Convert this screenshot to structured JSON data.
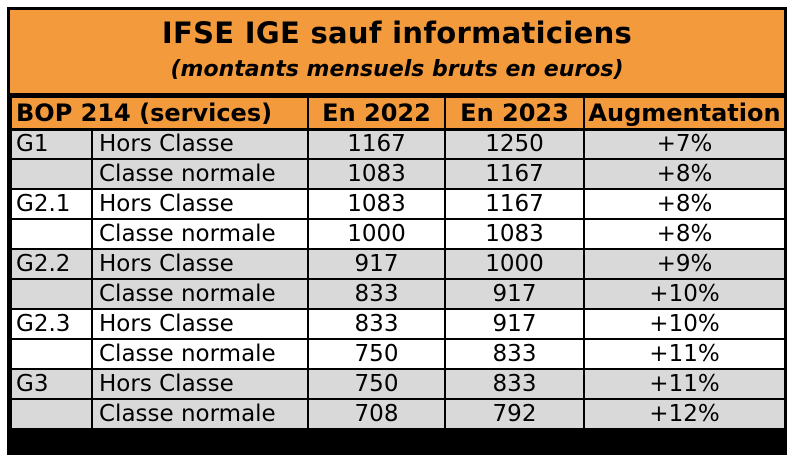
{
  "title": "IFSE IGE sauf informaticiens",
  "subtitle": "(montants mensuels bruts en euros)",
  "headers": {
    "services": "BOP 214 (services)",
    "y2022": "En 2022",
    "y2023": "En 2023",
    "augmentation": "Augmentation"
  },
  "rows": [
    {
      "group": "G1",
      "label": "Hors Classe",
      "y2022": "1167",
      "y2023": "1250",
      "increase": "+7%"
    },
    {
      "group": "",
      "label": "Classe normale",
      "y2022": "1083",
      "y2023": "1167",
      "increase": "+8%"
    },
    {
      "group": "G2.1",
      "label": "Hors Classe",
      "y2022": "1083",
      "y2023": "1167",
      "increase": "+8%"
    },
    {
      "group": "",
      "label": "Classe normale",
      "y2022": "1000",
      "y2023": "1083",
      "increase": "+8%"
    },
    {
      "group": "G2.2",
      "label": "Hors Classe",
      "y2022": "917",
      "y2023": "1000",
      "increase": "+9%"
    },
    {
      "group": "",
      "label": "Classe normale",
      "y2022": "833",
      "y2023": "917",
      "increase": "+10%"
    },
    {
      "group": "G2.3",
      "label": "Hors Classe",
      "y2022": "833",
      "y2023": "917",
      "increase": "+10%"
    },
    {
      "group": "",
      "label": "Classe normale",
      "y2022": "750",
      "y2023": "833",
      "increase": "+11%"
    },
    {
      "group": "G3",
      "label": "Hors Classe",
      "y2022": "750",
      "y2023": "833",
      "increase": "+11%"
    },
    {
      "group": "",
      "label": "Classe normale",
      "y2022": "708",
      "y2023": "792",
      "increase": "+12%"
    }
  ],
  "colors": {
    "header_orange": "#f39a3d",
    "row_gray": "#d9d9d9",
    "row_white": "#ffffff"
  }
}
